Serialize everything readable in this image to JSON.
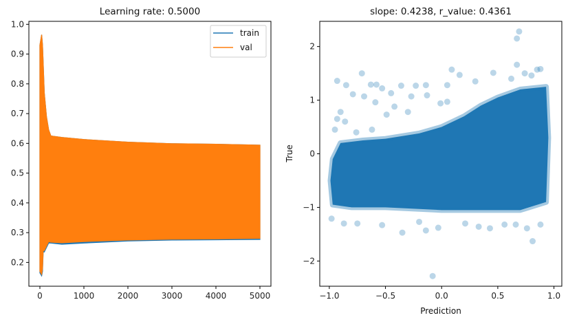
{
  "chart_data": [
    {
      "type": "line",
      "title": "Learning rate: 0.5000",
      "xlabel": "",
      "ylabel": "",
      "xlim": [
        -250,
        5250
      ],
      "ylim": [
        0.12,
        1.01
      ],
      "xticks": [
        0,
        1000,
        2000,
        3000,
        4000,
        5000
      ],
      "xtick_labels": [
        "0",
        "1000",
        "2000",
        "3000",
        "4000",
        "5000"
      ],
      "yticks": [
        0.2,
        0.3,
        0.4,
        0.5,
        0.6,
        0.7,
        0.8,
        0.9,
        1.0
      ],
      "ytick_labels": [
        "0.2",
        "0.3",
        "0.4",
        "0.5",
        "0.6",
        "0.7",
        "0.8",
        "0.9",
        "1.0"
      ],
      "legend_position": "top-right",
      "grid": false,
      "note_oscillation": "both series oscillate rapidly between an upper and lower envelope",
      "series": [
        {
          "name": "train",
          "color": "#1f77b4",
          "x": [
            0,
            40,
            60,
            75,
            100,
            150,
            200,
            250,
            500,
            1000,
            2000,
            3000,
            4000,
            5000
          ],
          "upper": [
            0.93,
            0.965,
            0.93,
            0.87,
            0.77,
            0.69,
            0.645,
            0.625,
            0.62,
            0.613,
            0.604,
            0.599,
            0.597,
            0.594
          ],
          "lower": [
            0.165,
            0.155,
            0.17,
            0.235,
            0.235,
            0.25,
            0.265,
            0.265,
            0.261,
            0.265,
            0.272,
            0.275,
            0.276,
            0.277
          ]
        },
        {
          "name": "val",
          "color": "#ff7f0e",
          "x": [
            0,
            40,
            60,
            75,
            100,
            150,
            200,
            250,
            500,
            1000,
            2000,
            3000,
            4000,
            5000
          ],
          "upper": [
            0.93,
            0.965,
            0.93,
            0.87,
            0.77,
            0.69,
            0.645,
            0.625,
            0.62,
            0.613,
            0.604,
            0.599,
            0.597,
            0.594
          ],
          "lower": [
            0.17,
            0.16,
            0.18,
            0.24,
            0.24,
            0.255,
            0.27,
            0.268,
            0.266,
            0.27,
            0.275,
            0.278,
            0.279,
            0.281
          ]
        }
      ]
    },
    {
      "type": "scatter",
      "title": "slope: 0.4238, r_value: 0.4361",
      "xlabel": "Prediction",
      "ylabel": "True",
      "xlim": [
        -1.085,
        1.07
      ],
      "ylim": [
        -2.47,
        2.47
      ],
      "xticks": [
        -1.0,
        -0.5,
        0.0,
        0.5,
        1.0
      ],
      "xtick_labels": [
        "−1.0",
        "−0.5",
        "0.0",
        "0.5",
        "1.0"
      ],
      "yticks": [
        -2,
        -1,
        0,
        1,
        2
      ],
      "ytick_labels": [
        "−2",
        "−1",
        "0",
        "1",
        "2"
      ],
      "grid": false,
      "color": "#1f77b4",
      "alpha": 0.3,
      "dense_region": [
        [
          -0.97,
          -0.1
        ],
        [
          -0.9,
          0.2
        ],
        [
          -0.7,
          0.25
        ],
        [
          -0.5,
          0.28
        ],
        [
          -0.2,
          0.38
        ],
        [
          0.0,
          0.5
        ],
        [
          0.2,
          0.7
        ],
        [
          0.35,
          0.9
        ],
        [
          0.5,
          1.05
        ],
        [
          0.7,
          1.2
        ],
        [
          0.93,
          1.25
        ],
        [
          0.95,
          0.3
        ],
        [
          0.93,
          -0.9
        ],
        [
          0.7,
          -1.05
        ],
        [
          0.3,
          -1.05
        ],
        [
          0.0,
          -1.05
        ],
        [
          -0.5,
          -1.0
        ],
        [
          -0.8,
          -1.0
        ],
        [
          -0.97,
          -0.95
        ],
        [
          -0.99,
          -0.5
        ]
      ],
      "points": [
        [
          0.69,
          2.28
        ],
        [
          0.67,
          2.15
        ],
        [
          0.67,
          1.66
        ],
        [
          0.81,
          -1.63
        ],
        [
          -0.08,
          -2.28
        ],
        [
          -0.35,
          -1.47
        ],
        [
          -0.93,
          1.36
        ],
        [
          -0.85,
          1.28
        ],
        [
          -0.71,
          1.5
        ],
        [
          -0.79,
          1.11
        ],
        [
          -0.63,
          1.29
        ],
        [
          -0.58,
          1.29
        ],
        [
          -0.53,
          1.22
        ],
        [
          -0.36,
          1.27
        ],
        [
          -0.45,
          1.13
        ],
        [
          -0.23,
          1.27
        ],
        [
          -0.14,
          1.28
        ],
        [
          -0.27,
          1.07
        ],
        [
          -0.13,
          1.09
        ],
        [
          0.09,
          1.57
        ],
        [
          0.16,
          1.47
        ],
        [
          0.05,
          1.28
        ],
        [
          0.46,
          1.51
        ],
        [
          0.88,
          1.58
        ],
        [
          0.85,
          1.57
        ],
        [
          0.8,
          1.46
        ],
        [
          -0.69,
          1.07
        ],
        [
          -0.59,
          0.96
        ],
        [
          -0.42,
          0.88
        ],
        [
          -0.49,
          0.73
        ],
        [
          -0.9,
          0.78
        ],
        [
          -0.86,
          0.6
        ],
        [
          -0.01,
          0.94
        ],
        [
          -0.14,
          -1.43
        ],
        [
          -0.53,
          -1.33
        ],
        [
          -0.98,
          -1.21
        ],
        [
          -0.87,
          -1.3
        ],
        [
          -0.03,
          -1.38
        ],
        [
          0.76,
          -1.39
        ],
        [
          0.56,
          -1.32
        ],
        [
          0.43,
          -1.39
        ],
        [
          0.33,
          -1.36
        ],
        [
          0.21,
          -1.3
        ],
        [
          0.88,
          -1.32
        ],
        [
          0.66,
          -1.32
        ],
        [
          -0.75,
          -1.3
        ],
        [
          -0.2,
          -1.27
        ],
        [
          0.3,
          1.35
        ],
        [
          0.62,
          1.4
        ],
        [
          0.74,
          1.5
        ],
        [
          -0.3,
          0.78
        ],
        [
          -0.62,
          0.45
        ],
        [
          -0.76,
          0.4
        ],
        [
          0.05,
          0.97
        ],
        [
          -0.93,
          0.65
        ],
        [
          -0.95,
          0.45
        ]
      ]
    }
  ]
}
